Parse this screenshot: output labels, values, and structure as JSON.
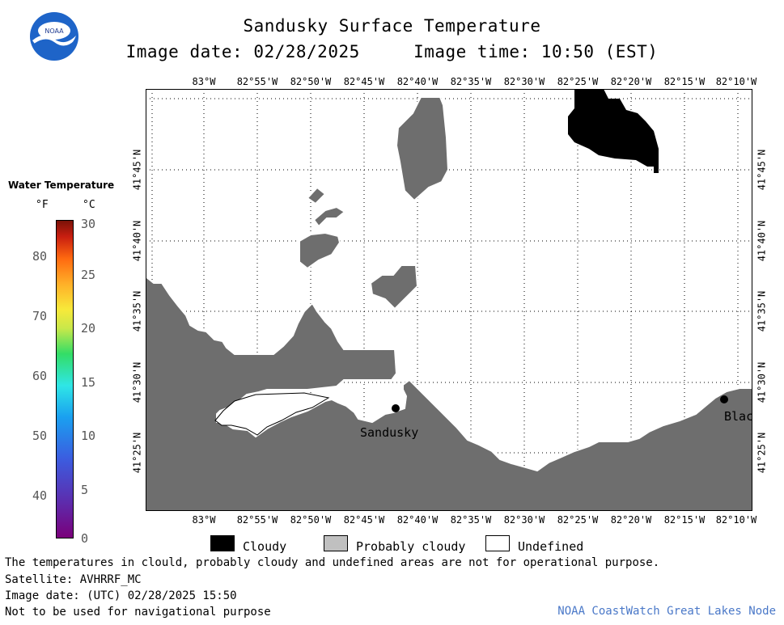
{
  "header": {
    "title": "Sandusky Surface Temperature",
    "image_date": "Image date: 02/28/2025",
    "image_time": "Image time: 10:50 (EST)",
    "logo_text": "NOAA"
  },
  "axes": {
    "lon_labels": [
      "83°W",
      "82°55'W",
      "82°50'W",
      "82°45'W",
      "82°40'W",
      "82°35'W",
      "82°30'W",
      "82°25'W",
      "82°20'W",
      "82°15'W",
      "82°10'W"
    ],
    "lat_labels": [
      "41°45'N",
      "41°40'N",
      "41°35'N",
      "41°30'N",
      "41°25'N"
    ]
  },
  "places": [
    {
      "name": "Sandusky"
    },
    {
      "name": "Blac"
    }
  ],
  "colorbar": {
    "title": "Water Temperature",
    "unit_f": "°F",
    "unit_c": "°C",
    "f_ticks": [
      "80",
      "70",
      "60",
      "50",
      "40"
    ],
    "c_ticks": [
      "30",
      "25",
      "20",
      "15",
      "10",
      "5",
      "0"
    ]
  },
  "legend": {
    "cloudy": "Cloudy",
    "probably_cloudy": "Probably cloudy",
    "undefined": "Undefined",
    "colors": {
      "cloudy": "#000000",
      "probably_cloudy": "#c0c0c0",
      "undefined": "#ffffff",
      "land": "#6e6e6e"
    }
  },
  "footer": {
    "note1": "The temperatures in clould, probably cloudy and undefined areas are not for operational purpose.",
    "satellite": "Satellite: AVHRRF_MC",
    "utc_date": "Image date: (UTC) 02/28/2025  15:50",
    "nav_note": "Not to be used for navigational purpose",
    "node": "NOAA CoastWatch Great Lakes Node"
  }
}
